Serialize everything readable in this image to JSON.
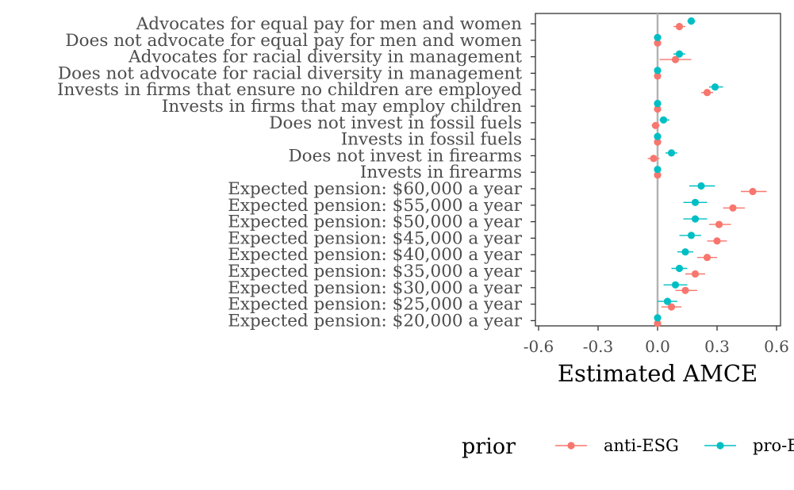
{
  "chart_data": {
    "type": "scatter",
    "subtype": "coefficient-plot-with-error-bars",
    "title": "",
    "xlabel": "Estimated AMCE",
    "ylabel": "",
    "xlim": [
      -0.6,
      0.6
    ],
    "x_ticks": [
      -0.6,
      -0.3,
      0.0,
      0.3,
      0.6
    ],
    "x_tick_labels": [
      "-0.6",
      "-0.3",
      "0.0",
      "0.3",
      "0.6"
    ],
    "reference_line": 0,
    "grid": false,
    "legend": {
      "title": "prior",
      "placement": "bottom",
      "entries": [
        "anti-ESG",
        "pro-E"
      ]
    },
    "categories": [
      "Advocates for equal pay for men and women",
      "Does not advocate for equal pay for men and women",
      "Advocates for racial diversity in management",
      "Does not advocate for racial diversity in management",
      "Invests in firms that ensure no children are employed",
      "Invests in firms that may employ children",
      "Does not invest in fossil fuels",
      "Invests in fossil fuels",
      "Does not invest in firearms",
      "Invests in firearms",
      "Expected pension: $60,000 a year",
      "Expected pension: $55,000 a year",
      "Expected pension: $50,000 a year",
      "Expected pension: $45,000 a year",
      "Expected pension: $40,000 a year",
      "Expected pension: $35,000 a year",
      "Expected pension: $30,000 a year",
      "Expected pension: $25,000 a year",
      "Expected pension: $20,000 a year"
    ],
    "series": [
      {
        "name": "anti-ESG",
        "color": "#F8766D",
        "estimates": [
          0.11,
          0.0,
          0.09,
          0.0,
          0.25,
          0.0,
          -0.01,
          0.0,
          -0.02,
          0.0,
          0.48,
          0.38,
          0.31,
          0.3,
          0.25,
          0.19,
          0.14,
          0.07,
          0.0
        ],
        "ci_low": [
          0.08,
          0.0,
          0.01,
          0.0,
          0.22,
          0.0,
          -0.03,
          0.0,
          -0.05,
          0.0,
          0.42,
          0.33,
          0.26,
          0.25,
          0.2,
          0.14,
          0.09,
          0.02,
          0.0
        ],
        "ci_high": [
          0.14,
          0.0,
          0.17,
          0.0,
          0.28,
          0.0,
          0.01,
          0.0,
          0.01,
          0.0,
          0.55,
          0.44,
          0.37,
          0.35,
          0.3,
          0.24,
          0.2,
          0.12,
          0.0
        ]
      },
      {
        "name": "pro-E",
        "color": "#00BFC4",
        "estimates": [
          0.17,
          0.0,
          0.11,
          0.0,
          0.29,
          0.0,
          0.03,
          0.0,
          0.07,
          0.0,
          0.22,
          0.19,
          0.19,
          0.17,
          0.14,
          0.11,
          0.09,
          0.05,
          0.0
        ],
        "ci_low": [
          0.15,
          0.0,
          0.08,
          0.0,
          0.26,
          0.0,
          0.01,
          0.0,
          0.04,
          0.0,
          0.16,
          0.13,
          0.13,
          0.11,
          0.1,
          0.07,
          0.03,
          0.0,
          0.0
        ],
        "ci_high": [
          0.19,
          0.0,
          0.14,
          0.0,
          0.33,
          0.0,
          0.06,
          0.0,
          0.1,
          0.0,
          0.29,
          0.25,
          0.25,
          0.22,
          0.18,
          0.15,
          0.15,
          0.1,
          0.0
        ]
      }
    ]
  }
}
